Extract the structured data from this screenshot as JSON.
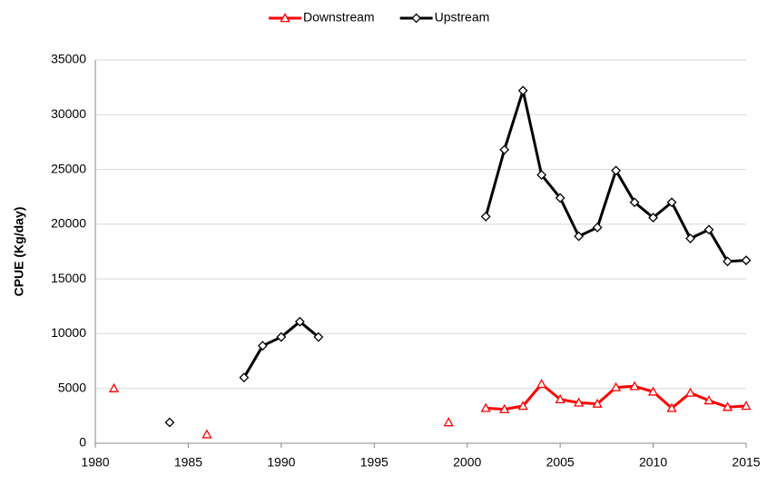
{
  "chart_data": {
    "type": "line",
    "y_label": "CPUE (Kg/day)",
    "x": [
      1981,
      1982,
      1983,
      1984,
      1985,
      1986,
      1987,
      1988,
      1989,
      1990,
      1991,
      1992,
      1993,
      1994,
      1995,
      1996,
      1997,
      1998,
      1999,
      2000,
      2001,
      2002,
      2003,
      2004,
      2005,
      2006,
      2007,
      2008,
      2009,
      2010,
      2011,
      2012,
      2013,
      2014,
      2015
    ],
    "series": [
      {
        "name": "Downstream",
        "color": "#ff0000",
        "marker": "triangle",
        "values": [
          5000,
          null,
          null,
          null,
          null,
          800,
          null,
          null,
          null,
          null,
          null,
          null,
          null,
          null,
          null,
          null,
          null,
          null,
          1900,
          null,
          3200,
          3100,
          3400,
          5400,
          4000,
          3700,
          3600,
          5100,
          5200,
          4700,
          3200,
          4600,
          3900,
          3300,
          3400
        ]
      },
      {
        "name": "Upstream",
        "color": "#000000",
        "marker": "diamond",
        "values": [
          null,
          null,
          null,
          1900,
          null,
          null,
          null,
          6000,
          8900,
          9700,
          11100,
          9700,
          null,
          null,
          null,
          null,
          null,
          null,
          null,
          null,
          20700,
          26800,
          32200,
          24500,
          22400,
          18900,
          19700,
          24900,
          22000,
          20600,
          22000,
          18700,
          19500,
          16600,
          16700
        ]
      }
    ],
    "xlim": [
      1980,
      2015
    ],
    "xticks": [
      1980,
      1985,
      1990,
      1995,
      2000,
      2005,
      2010,
      2015
    ],
    "ylim": [
      0,
      35000
    ],
    "yticks": [
      0,
      5000,
      10000,
      15000,
      20000,
      25000,
      30000,
      35000
    ],
    "grid": true,
    "legend": "top"
  }
}
